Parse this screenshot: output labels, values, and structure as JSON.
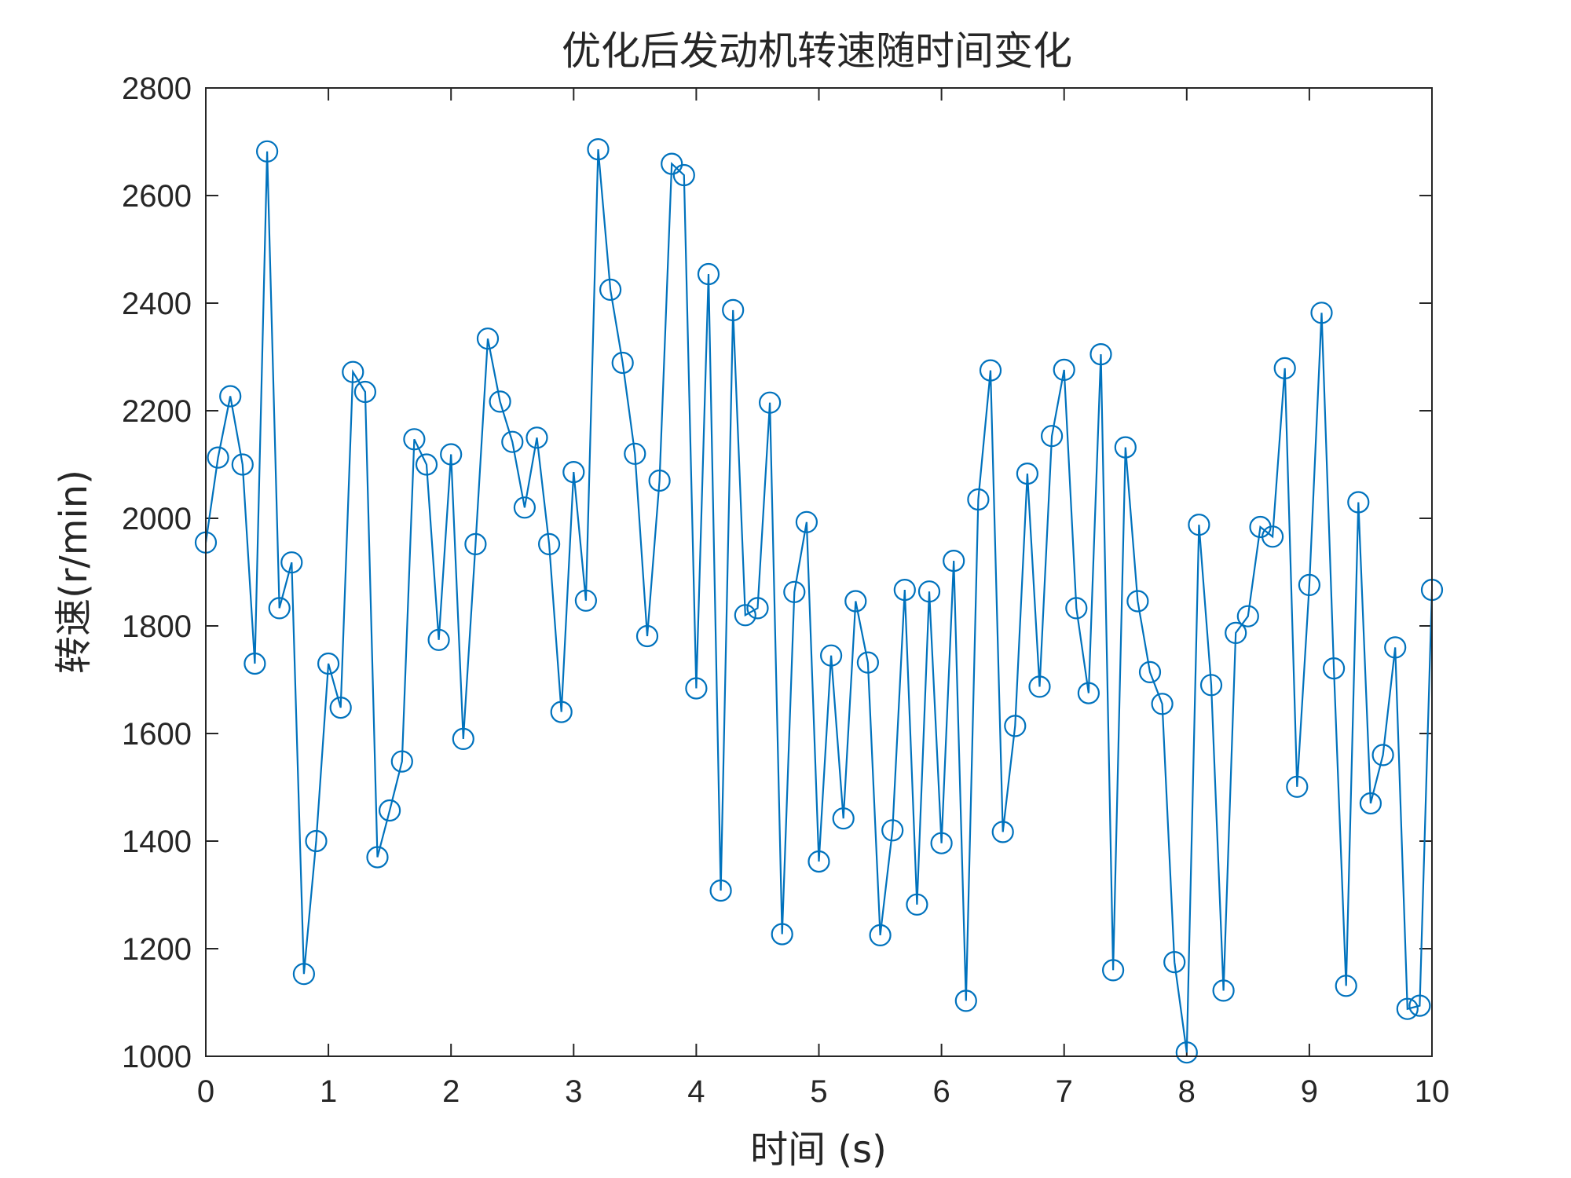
{
  "chart_data": {
    "type": "line",
    "title": "优化后发动机转速随时间变化",
    "xlabel": "时间 (s)",
    "ylabel": "转速(r/min)",
    "xlim": [
      0,
      10
    ],
    "ylim": [
      1000,
      2800
    ],
    "xticks": [
      0,
      1,
      2,
      3,
      4,
      5,
      6,
      7,
      8,
      9,
      10
    ],
    "yticks": [
      1000,
      1200,
      1400,
      1600,
      1800,
      2000,
      2200,
      2400,
      2600,
      2800
    ],
    "grid": false,
    "marker": "circle",
    "color": "#0072BD",
    "series": [
      {
        "x": [
          0,
          0.1,
          0.2,
          0.3,
          0.4,
          0.5,
          0.6,
          0.7,
          0.8,
          0.9,
          1.0,
          1.1,
          1.2,
          1.3,
          1.4,
          1.5,
          1.6,
          1.7,
          1.8,
          1.9,
          2.0,
          2.1,
          2.2,
          2.3,
          2.4,
          2.5,
          2.6,
          2.7,
          2.8,
          2.9,
          3.0,
          3.1,
          3.2,
          3.3,
          3.4,
          3.5,
          3.6,
          3.7,
          3.8,
          3.9,
          4.0,
          4.1,
          4.2,
          4.3,
          4.4,
          4.5,
          4.6,
          4.7,
          4.8,
          4.9,
          5.0,
          5.1,
          5.2,
          5.3,
          5.4,
          5.5,
          5.6,
          5.7,
          5.8,
          5.9,
          6.0,
          6.1,
          6.2,
          6.3,
          6.4,
          6.5,
          6.6,
          6.7,
          6.8,
          6.9,
          7.0,
          7.1,
          7.2,
          7.3,
          7.4,
          7.5,
          7.6,
          7.7,
          7.8,
          7.9,
          8.0,
          8.1,
          8.2,
          8.3,
          8.4,
          8.5,
          8.6,
          8.7,
          8.8,
          8.9,
          9.0,
          9.1,
          9.2,
          9.3,
          9.4,
          9.5,
          9.6,
          9.7,
          9.8,
          9.9,
          10.0
        ],
        "y": [
          1955,
          2113,
          2227,
          2100,
          1730,
          2682,
          1833,
          1918,
          1153,
          1400,
          1730,
          1648,
          2272,
          2235,
          1370,
          1457,
          1548,
          2147,
          2100,
          1774,
          2119,
          1590,
          1952,
          2334,
          2217,
          2142,
          2020,
          2150,
          1952,
          1640,
          2086,
          1847,
          2686,
          2425,
          2289,
          2120,
          1781,
          2070,
          2659,
          2638,
          1684,
          2454,
          1308,
          2387,
          1820,
          1833,
          2215,
          1227,
          1863,
          1993,
          1362,
          1745,
          1442,
          1846,
          1732,
          1225,
          1420,
          1867,
          1282,
          1864,
          1396,
          1921,
          1103,
          2035,
          2275,
          1417,
          1614,
          2083,
          1687,
          2153,
          2276,
          1833,
          1675,
          2305,
          1160,
          2132,
          1846,
          1714,
          1655,
          1175,
          1007,
          1988,
          1690,
          1122,
          1787,
          1818,
          1984,
          1966,
          2279,
          1501,
          1876,
          2382,
          1721,
          1131,
          2030,
          1470,
          1560,
          1760,
          1088,
          1094,
          1867
        ]
      }
    ]
  }
}
